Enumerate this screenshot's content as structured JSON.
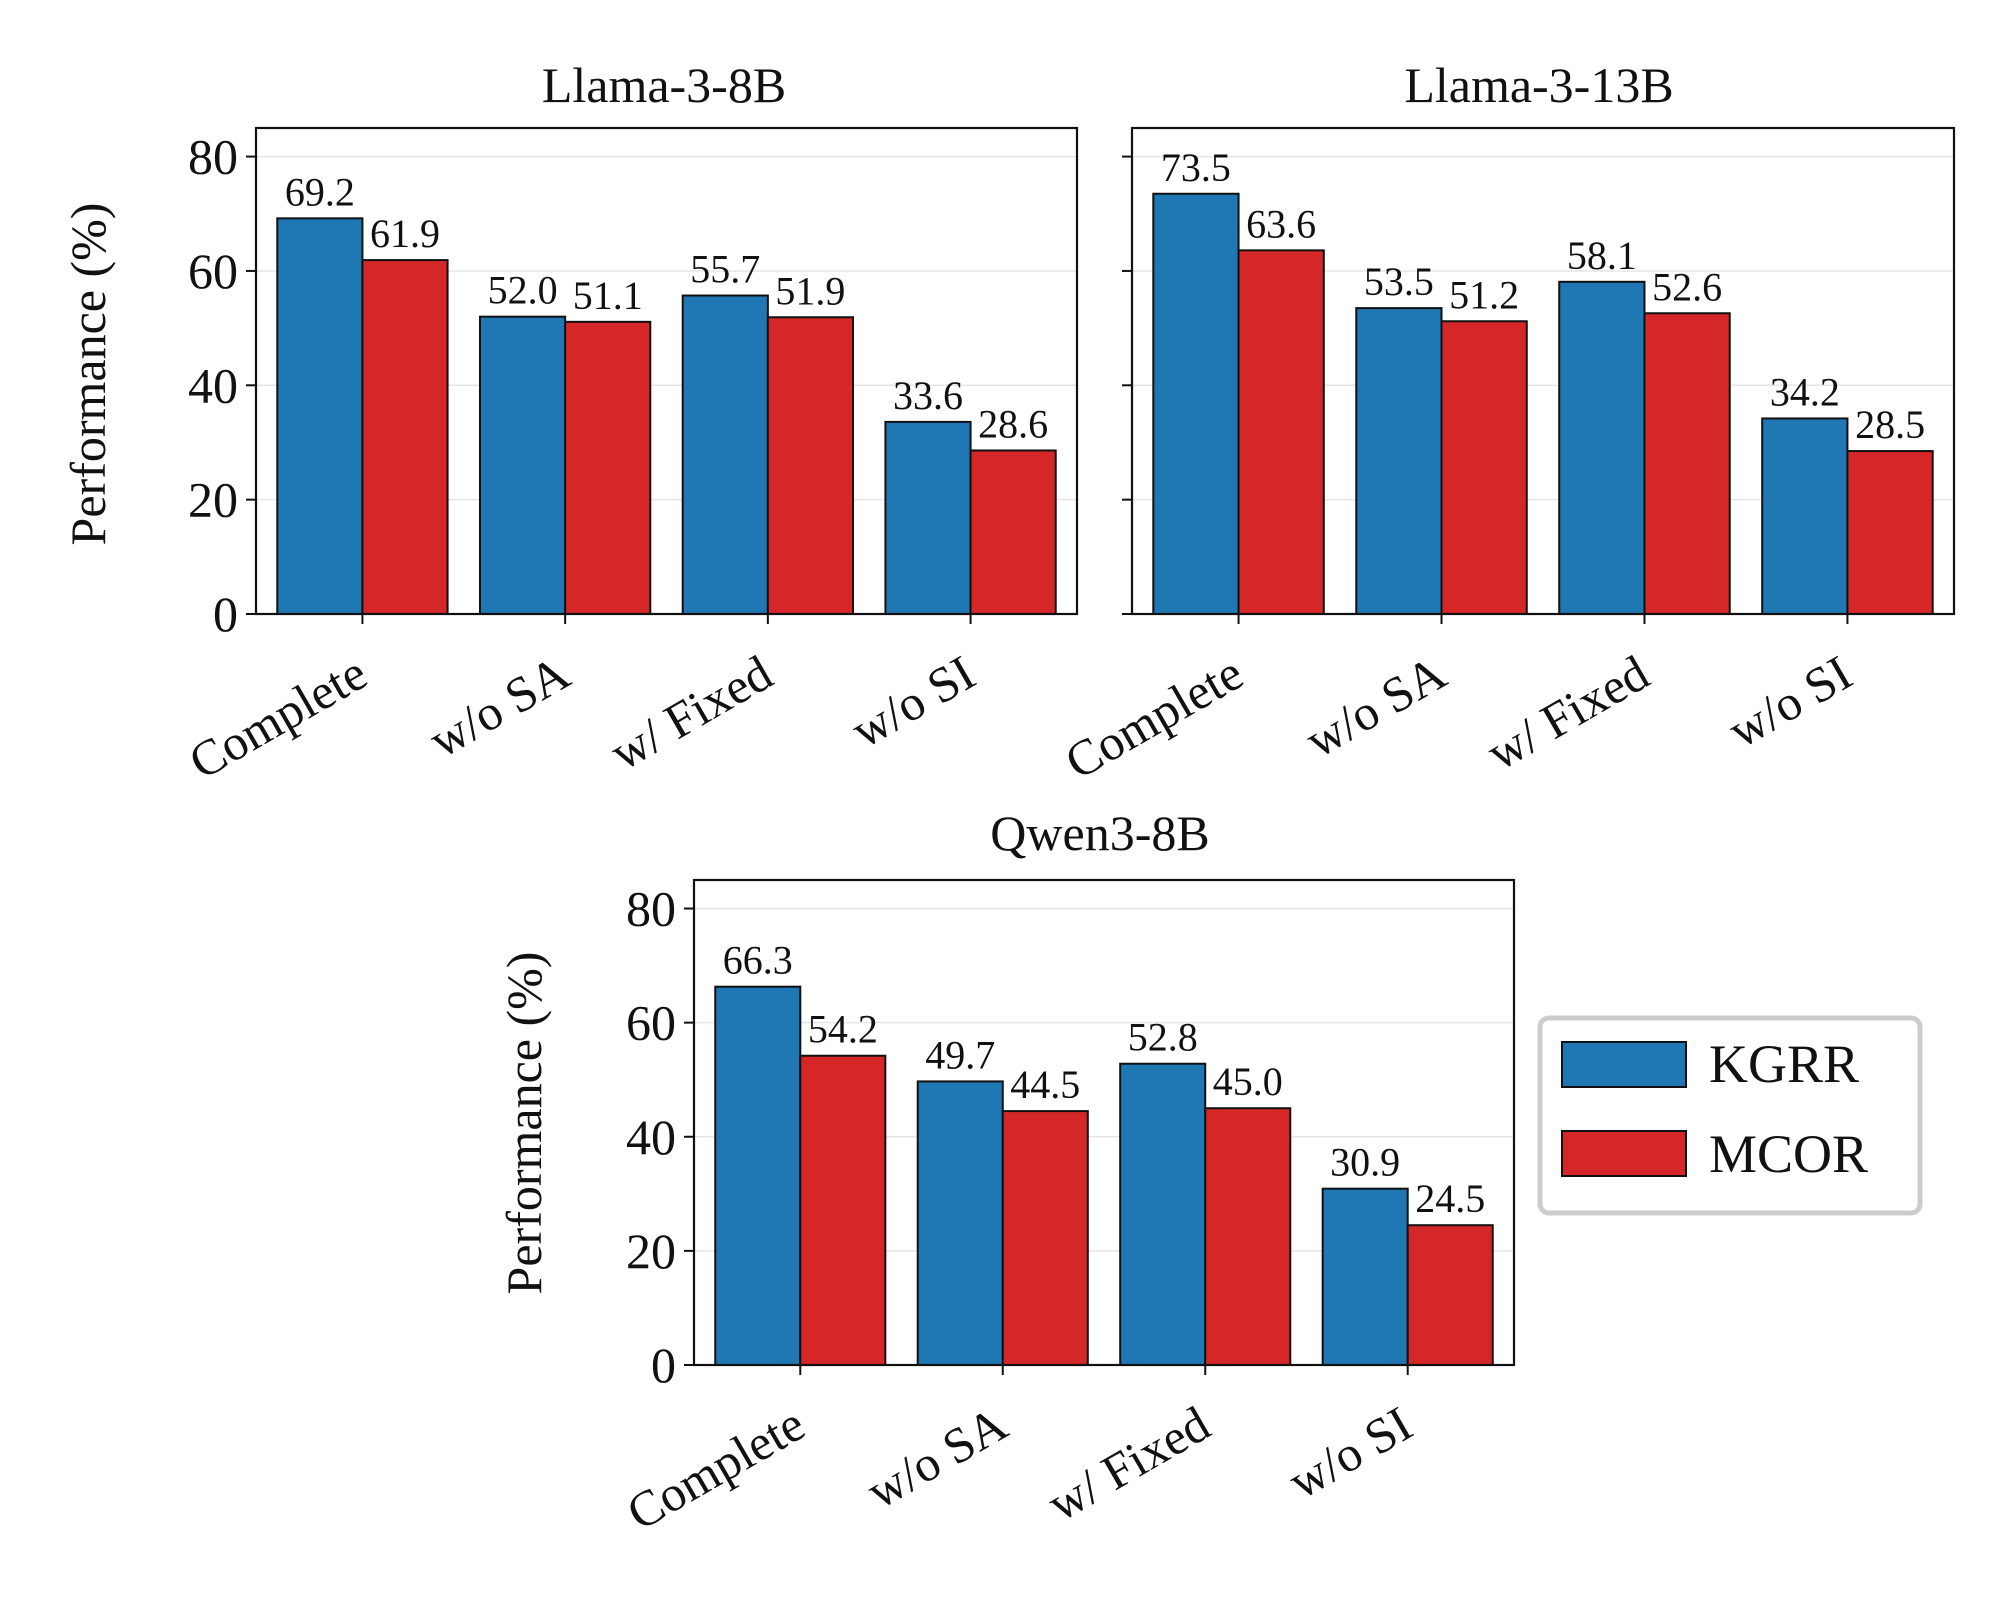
{
  "chart_data": [
    {
      "type": "bar",
      "title": "Llama-3-8B",
      "categories": [
        "Complete",
        "w/o SA",
        "w/ Fixed",
        "w/o SI"
      ],
      "series": [
        {
          "name": "KGRR",
          "values": [
            69.2,
            52.0,
            55.7,
            33.6
          ]
        },
        {
          "name": "MCOR",
          "values": [
            61.9,
            51.1,
            51.9,
            28.6
          ]
        }
      ],
      "value_labels": [
        [
          "69.2",
          "52.0",
          "55.7",
          "33.6"
        ],
        [
          "61.9",
          "51.1",
          "51.9",
          "28.6"
        ]
      ],
      "ylabel": "Performance (%)",
      "xlabel": "",
      "ylim": [
        0,
        85
      ],
      "yticks": [
        0,
        20,
        40,
        60,
        80
      ],
      "show_ytick_labels": true,
      "grid": true
    },
    {
      "type": "bar",
      "title": "Llama-3-13B",
      "categories": [
        "Complete",
        "w/o SA",
        "w/ Fixed",
        "w/o SI"
      ],
      "series": [
        {
          "name": "KGRR",
          "values": [
            73.5,
            53.5,
            58.1,
            34.2
          ]
        },
        {
          "name": "MCOR",
          "values": [
            63.6,
            51.2,
            52.6,
            28.5
          ]
        }
      ],
      "value_labels": [
        [
          "73.5",
          "53.5",
          "58.1",
          "34.2"
        ],
        [
          "63.6",
          "51.2",
          "52.6",
          "28.5"
        ]
      ],
      "ylabel": "",
      "xlabel": "",
      "ylim": [
        0,
        85
      ],
      "yticks": [
        0,
        20,
        40,
        60,
        80
      ],
      "show_ytick_labels": false,
      "grid": true
    },
    {
      "type": "bar",
      "title": "Qwen3-8B",
      "categories": [
        "Complete",
        "w/o SA",
        "w/ Fixed",
        "w/o SI"
      ],
      "series": [
        {
          "name": "KGRR",
          "values": [
            66.3,
            49.7,
            52.8,
            30.9
          ]
        },
        {
          "name": "MCOR",
          "values": [
            54.2,
            44.5,
            45.0,
            24.5
          ]
        }
      ],
      "value_labels": [
        [
          "66.3",
          "49.7",
          "52.8",
          "30.9"
        ],
        [
          "54.2",
          "44.5",
          "45.0",
          "24.5"
        ]
      ],
      "ylabel": "Performance (%)",
      "xlabel": "",
      "ylim": [
        0,
        85
      ],
      "yticks": [
        0,
        20,
        40,
        60,
        80
      ],
      "show_ytick_labels": true,
      "grid": true
    }
  ],
  "legend": {
    "position": "right of bottom chart",
    "entries": [
      {
        "label": "KGRR",
        "color": "#1f77b4"
      },
      {
        "label": "MCOR",
        "color": "#d62728"
      }
    ]
  },
  "colors": {
    "KGRR": "#1f77b4",
    "MCOR": "#d62728"
  }
}
